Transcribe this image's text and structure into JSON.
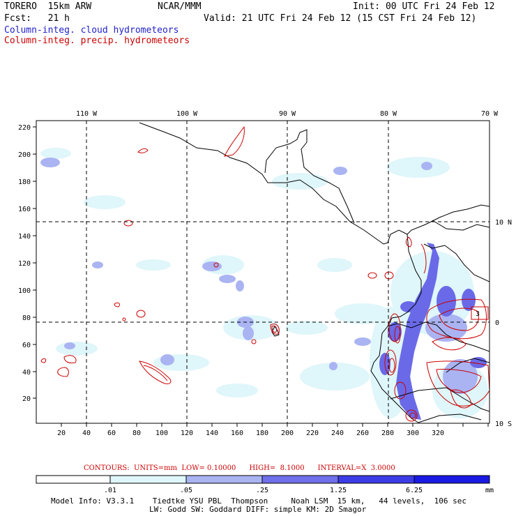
{
  "header": {
    "model": "TORERO  15km ARW",
    "org": "NCAR/MMM",
    "init": "Init: 00 UTC Fri 24 Feb 12",
    "fcst": "Fcst:   21 h",
    "valid": "Valid: 21 UTC Fri 24 Feb 12 (15 CST Fri 24 Feb 12)",
    "field1": "Column-integ. cloud hydrometeors",
    "field2": "Column-integ. precip. hydrometeors",
    "field1_color": "#2222cc",
    "field2_color": "#cc0000"
  },
  "map": {
    "lon_labels": [
      "110 W",
      "100 W",
      "90 W",
      "80 W",
      "70 W"
    ],
    "lat_labels": [
      "10 N",
      "0",
      "10 S"
    ],
    "x_ticks": [
      "20",
      "40",
      "60",
      "80",
      "100",
      "120",
      "140",
      "160",
      "180",
      "200",
      "220",
      "240",
      "260",
      "280",
      "300",
      "320"
    ],
    "y_ticks": [
      "20",
      "40",
      "60",
      "80",
      "100",
      "120",
      "140",
      "160",
      "180",
      "200",
      "220"
    ],
    "hi_label": "3"
  },
  "legend": {
    "contours_text": "CONTOURS:  UNITS=mm  LOW= 0.10000      HIGH=  8.1000      INTERVAL=X  3.0000",
    "breaks": [
      ".01",
      ".05",
      ".25",
      "1.25",
      "6.25"
    ],
    "unit": "mm",
    "colors": [
      "#ffffff",
      "#dff6fa",
      "#aab4f2",
      "#7070ea",
      "#3c3ce6",
      "#1a1ae4"
    ]
  },
  "footer": {
    "line1": "Model Info: V3.3.1    Tiedtke YSU PBL  Thompson     Noah LSM  15 km,   44 levels,  106 sec",
    "line2": "LW: Godd SW: Goddard DIFF: simple KM: 2D Smagor"
  }
}
